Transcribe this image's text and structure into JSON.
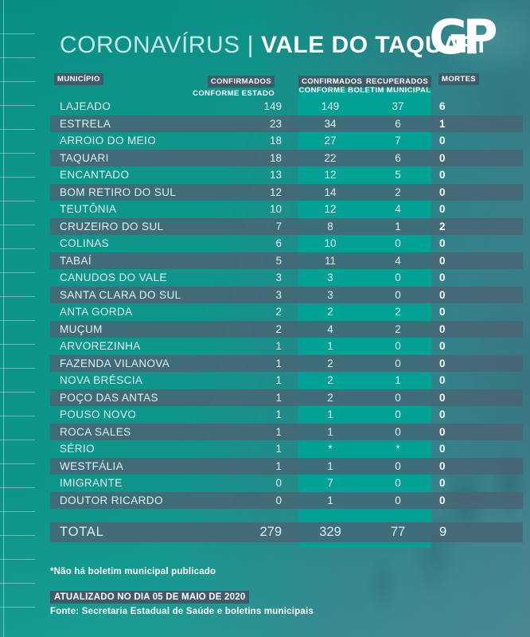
{
  "title": {
    "light": "CORONAVÍRUS",
    "separator": "|",
    "bold": "VALE DO TAQUARI"
  },
  "logo": {
    "text": "GP"
  },
  "chart_data": {
    "type": "table",
    "title": "CORONAVÍRUS | VALE DO TAQUARI",
    "columns": {
      "municipio": "MUNICÍPIO",
      "confirmados_estado": "CONFIRMADOS",
      "confirmados_estado_sub": "CONFORME ESTADO",
      "confirmados_municipal": "CONFIRMADOS",
      "recuperados": "RECUPERADOS",
      "boletim_sub": "CONFORME BOLETIM MUNICIPAL",
      "mortes": "MORTES"
    },
    "rows": [
      {
        "name": "LAJEADO",
        "estado": "149",
        "municipal": "149",
        "recuperados": "37",
        "mortes": "6"
      },
      {
        "name": "ESTRELA",
        "estado": "23",
        "municipal": "34",
        "recuperados": "6",
        "mortes": "1"
      },
      {
        "name": "ARROIO DO MEIO",
        "estado": "18",
        "municipal": "27",
        "recuperados": "7",
        "mortes": "0"
      },
      {
        "name": "TAQUARI",
        "estado": "18",
        "municipal": "22",
        "recuperados": "6",
        "mortes": "0"
      },
      {
        "name": "ENCANTADO",
        "estado": "13",
        "municipal": "12",
        "recuperados": "5",
        "mortes": "0"
      },
      {
        "name": "BOM RETIRO DO SUL",
        "estado": "12",
        "municipal": "14",
        "recuperados": "2",
        "mortes": "0"
      },
      {
        "name": "TEUTÔNIA",
        "estado": "10",
        "municipal": "12",
        "recuperados": "4",
        "mortes": "0"
      },
      {
        "name": "CRUZEIRO DO SUL",
        "estado": "7",
        "municipal": "8",
        "recuperados": "1",
        "mortes": "2"
      },
      {
        "name": "COLINAS",
        "estado": "6",
        "municipal": "10",
        "recuperados": "0",
        "mortes": "0"
      },
      {
        "name": "TABAÍ",
        "estado": "5",
        "municipal": "11",
        "recuperados": "4",
        "mortes": "0"
      },
      {
        "name": "CANUDOS DO VALE",
        "estado": "3",
        "municipal": "3",
        "recuperados": "0",
        "mortes": "0"
      },
      {
        "name": "SANTA CLARA DO SUL",
        "estado": "3",
        "municipal": "3",
        "recuperados": "0",
        "mortes": "0"
      },
      {
        "name": "ANTA GORDA",
        "estado": "2",
        "municipal": "2",
        "recuperados": "2",
        "mortes": "0"
      },
      {
        "name": "MUÇUM",
        "estado": "2",
        "municipal": "4",
        "recuperados": "2",
        "mortes": "0"
      },
      {
        "name": "ARVOREZINHA",
        "estado": "1",
        "municipal": "1",
        "recuperados": "0",
        "mortes": "0"
      },
      {
        "name": "FAZENDA VILANOVA",
        "estado": "1",
        "municipal": "2",
        "recuperados": "0",
        "mortes": "0"
      },
      {
        "name": "NOVA BRÉSCIA",
        "estado": "1",
        "municipal": "2",
        "recuperados": "1",
        "mortes": "0"
      },
      {
        "name": "POÇO DAS ANTAS",
        "estado": "1",
        "municipal": "2",
        "recuperados": "0",
        "mortes": "0"
      },
      {
        "name": "POUSO NOVO",
        "estado": "1",
        "municipal": "1",
        "recuperados": "0",
        "mortes": "0"
      },
      {
        "name": "ROCA SALES",
        "estado": "1",
        "municipal": "1",
        "recuperados": "0",
        "mortes": "0"
      },
      {
        "name": "SÉRIO",
        "estado": "1",
        "municipal": "*",
        "recuperados": "*",
        "mortes": "0"
      },
      {
        "name": "WESTFÁLIA",
        "estado": "1",
        "municipal": "1",
        "recuperados": "0",
        "mortes": "0"
      },
      {
        "name": "IMIGRANTE",
        "estado": "0",
        "municipal": "7",
        "recuperados": "0",
        "mortes": "0"
      },
      {
        "name": "DOUTOR RICARDO",
        "estado": "0",
        "municipal": "1",
        "recuperados": "0",
        "mortes": "0"
      }
    ],
    "total": {
      "name": "TOTAL",
      "estado": "279",
      "municipal": "329",
      "recuperados": "77",
      "mortes": "9"
    },
    "layout_hints": {
      "striped_rows": "even rows",
      "highlight_band_columns": [
        "confirmados_municipal",
        "recuperados"
      ]
    }
  },
  "footer": {
    "footnote": "*Não há boletim municipal publicado",
    "updated": "ATUALIZADO NO DIA 05 DE MAIO DE 2020",
    "source": "Fonte: Secretaria Estadual de Saúde e boletins municipais"
  },
  "colors": {
    "background_left": "#0F968C",
    "background_right": "#3F7F8A",
    "highlight_band": "#01A295",
    "row_stripe": "#496574",
    "header_box": "#3D5C6A",
    "title_light": "#C2E6E3",
    "text_white": "#FFFFFF"
  }
}
